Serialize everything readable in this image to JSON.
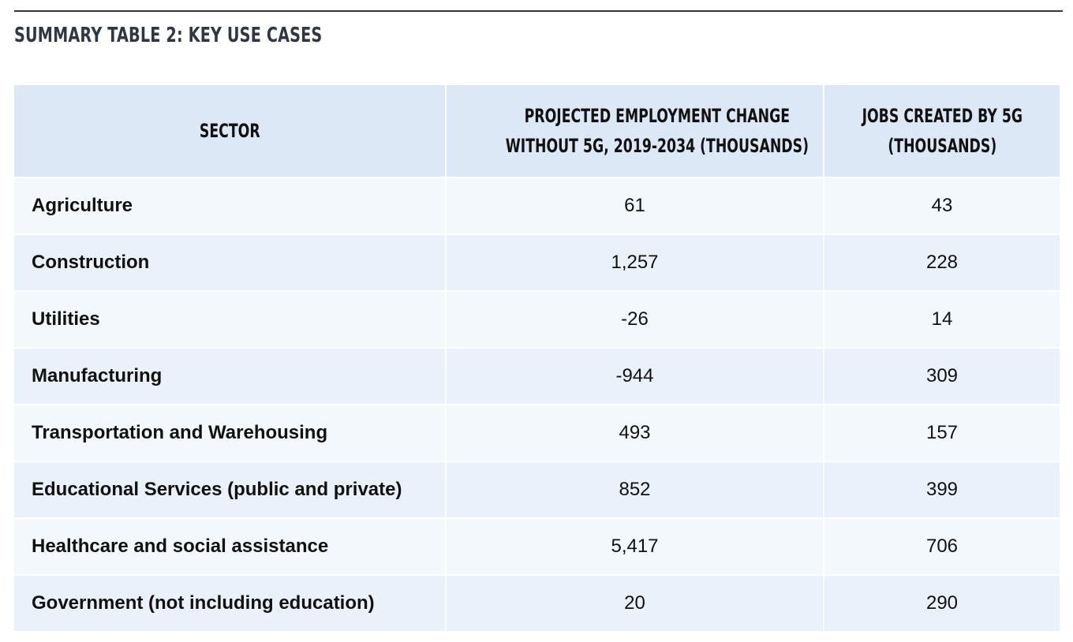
{
  "title": "SUMMARY TABLE 2: KEY USE CASES",
  "headers": {
    "sector": "SECTOR",
    "projected_line1": "PROJECTED EMPLOYMENT CHANGE",
    "projected_line2": "WITHOUT 5G, 2019-2034 (THOUSANDS)",
    "jobs_line1": "JOBS CREATED BY 5G",
    "jobs_line2": "(THOUSANDS)"
  },
  "rows": [
    {
      "sector": "Agriculture",
      "projected": "61",
      "jobs": "43"
    },
    {
      "sector": "Construction",
      "projected": "1,257",
      "jobs": "228"
    },
    {
      "sector": "Utilities",
      "projected": "-26",
      "jobs": "14"
    },
    {
      "sector": "Manufacturing",
      "projected": "-944",
      "jobs": "309"
    },
    {
      "sector": "Transportation and Warehousing",
      "projected": "493",
      "jobs": "157"
    },
    {
      "sector": "Educational Services (public and private)",
      "projected": "852",
      "jobs": "399"
    },
    {
      "sector": "Healthcare and social assistance",
      "projected": "5,417",
      "jobs": "706"
    },
    {
      "sector": "Government (not including education)",
      "projected": "20",
      "jobs": "290"
    }
  ]
}
